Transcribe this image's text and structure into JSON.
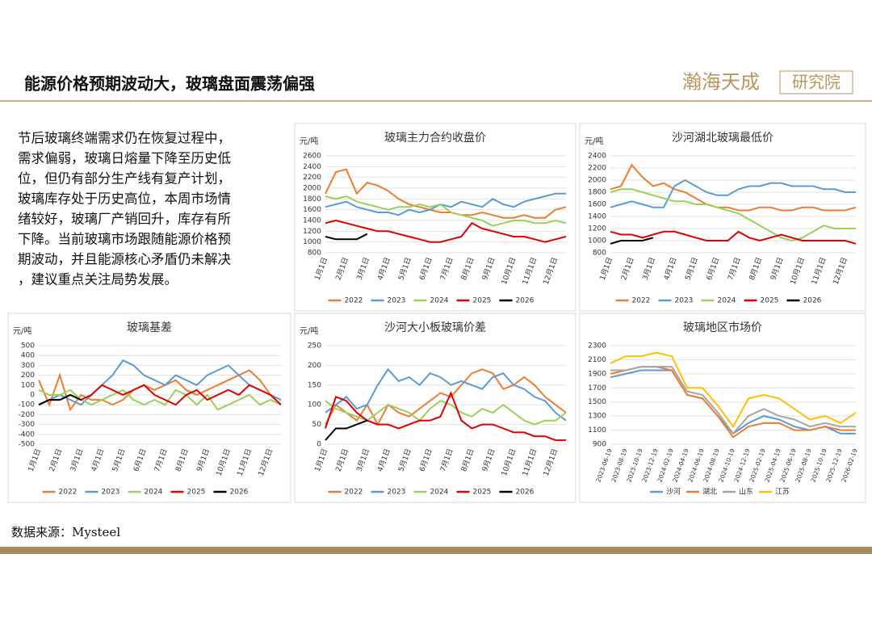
{
  "header": {
    "title": "能源价格预期波动大，玻璃盘面震荡偏强",
    "logo": "瀚海天成",
    "logo_box": "研究院"
  },
  "text": [
    "节后玻璃终端需求仍在恢复过程中，",
    "需求偏弱，玻璃日熔量下降至历史低",
    "位，但仍有部分生产线有复产计划，",
    "玻璃库存处于历史高位，本周市场情",
    "绪较好，玻璃厂产销回升，库存有所",
    "下降。当前玻璃市场跟随能源价格预",
    "期波动，并且能源核心矛盾仍未解决",
    "，建议重点关注局势发展。"
  ],
  "source": "数据来源：Mysteel",
  "chart_data": [
    {
      "type": "line",
      "title": "玻璃主力合约收盘价",
      "y_label": "元/吨",
      "grid": true,
      "categories": [
        "1月1日",
        null,
        "2月1日",
        null,
        "3月1日",
        null,
        "4月1日",
        null,
        "5月1日",
        null,
        "6月1日",
        null,
        "7月1日",
        null,
        "8月1日",
        null,
        "9月1日",
        null,
        "10月1日",
        null,
        "11月1日",
        null,
        "12月1日",
        null
      ],
      "ylim": [
        800,
        2600
      ],
      "yticks": [
        800,
        1000,
        1200,
        1400,
        1600,
        1800,
        2000,
        2200,
        2400,
        2600
      ],
      "series": [
        {
          "name": "2022",
          "color": "#ED7D31",
          "values": [
            1900,
            2300,
            2350,
            1900,
            2100,
            2050,
            1950,
            1800,
            1700,
            1650,
            1600,
            1550,
            1550,
            1500,
            1500,
            1550,
            1500,
            1450,
            1450,
            1500,
            1450,
            1450,
            1600,
            1650
          ]
        },
        {
          "name": "2023",
          "color": "#5B9BD5",
          "values": [
            1650,
            1700,
            1750,
            1650,
            1600,
            1550,
            1550,
            1500,
            1600,
            1550,
            1600,
            1700,
            1650,
            1750,
            1700,
            1650,
            1800,
            1700,
            1650,
            1750,
            1800,
            1850,
            1900,
            1900
          ]
        },
        {
          "name": "2024",
          "color": "#9BD05B",
          "values": [
            1850,
            1800,
            1850,
            1750,
            1700,
            1650,
            1600,
            1650,
            1650,
            1700,
            1650,
            1700,
            1550,
            1500,
            1450,
            1400,
            1300,
            1350,
            1400,
            1400,
            1350,
            1350,
            1400,
            1350
          ]
        },
        {
          "name": "2025",
          "color": "#E00000",
          "values": [
            1350,
            1400,
            1350,
            1300,
            1250,
            1200,
            1200,
            1150,
            1100,
            1050,
            1000,
            1000,
            1050,
            1100,
            1350,
            1250,
            1200,
            1150,
            1100,
            1100,
            1050,
            1000,
            1050,
            1100
          ]
        },
        {
          "name": "2026",
          "color": "#000000",
          "values": [
            1100,
            1050,
            1050,
            1050,
            1150,
            null,
            null,
            null,
            null,
            null,
            null,
            null,
            null,
            null,
            null,
            null,
            null,
            null,
            null,
            null,
            null,
            null,
            null,
            null
          ]
        }
      ]
    },
    {
      "type": "line",
      "title": "沙河湖北玻璃最低价",
      "y_label": "元/吨",
      "grid": true,
      "categories": [
        "1月1日",
        null,
        "2月1日",
        null,
        "3月1日",
        null,
        "4月1日",
        null,
        "5月1日",
        null,
        "6月1日",
        null,
        "7月1日",
        null,
        "8月1日",
        null,
        "9月1日",
        null,
        "10月1日",
        null,
        "11月1日",
        null,
        "12月1日",
        null
      ],
      "ylim": [
        800,
        2400
      ],
      "yticks": [
        800,
        1000,
        1200,
        1400,
        1600,
        1800,
        2000,
        2200,
        2400
      ],
      "series": [
        {
          "name": "2022",
          "color": "#ED7D31",
          "values": [
            1850,
            1900,
            2250,
            2050,
            1900,
            1950,
            1850,
            1800,
            1700,
            1600,
            1550,
            1550,
            1500,
            1500,
            1550,
            1550,
            1500,
            1500,
            1550,
            1550,
            1500,
            1500,
            1500,
            1550
          ]
        },
        {
          "name": "2023",
          "color": "#5B9BD5",
          "values": [
            1550,
            1600,
            1650,
            1600,
            1550,
            1550,
            1900,
            2000,
            1900,
            1800,
            1750,
            1750,
            1850,
            1900,
            1900,
            1950,
            1950,
            1900,
            1900,
            1900,
            1850,
            1850,
            1800,
            1800
          ]
        },
        {
          "name": "2024",
          "color": "#9BD05B",
          "values": [
            1800,
            1850,
            1850,
            1800,
            1750,
            1700,
            1650,
            1650,
            1600,
            1600,
            1550,
            1500,
            1450,
            1350,
            1250,
            1150,
            1050,
            1000,
            1050,
            1150,
            1250,
            1200,
            1200,
            1200
          ]
        },
        {
          "name": "2025",
          "color": "#E00000",
          "values": [
            1150,
            1100,
            1100,
            1050,
            1100,
            1150,
            1150,
            1100,
            1050,
            1000,
            1000,
            1000,
            1150,
            1050,
            1000,
            1050,
            1100,
            1050,
            1000,
            1000,
            1000,
            1000,
            1000,
            950
          ]
        },
        {
          "name": "2026",
          "color": "#000000",
          "values": [
            950,
            1000,
            1000,
            1000,
            1050,
            null,
            null,
            null,
            null,
            null,
            null,
            null,
            null,
            null,
            null,
            null,
            null,
            null,
            null,
            null,
            null,
            null,
            null,
            null
          ]
        }
      ]
    },
    {
      "type": "line",
      "title": "玻璃基差",
      "y_label": "元/吨",
      "grid": true,
      "categories": [
        "1月1日",
        null,
        "2月1日",
        null,
        "3月1日",
        null,
        "4月1日",
        null,
        "5月1日",
        null,
        "6月1日",
        null,
        "7月1日",
        null,
        "8月1日",
        null,
        "9月1日",
        null,
        "10月1日",
        null,
        "11月1日",
        null,
        "12月1日",
        null
      ],
      "ylim": [
        -500,
        500
      ],
      "yticks": [
        -500,
        -400,
        -300,
        -200,
        -100,
        0,
        100,
        200,
        300,
        400,
        500
      ],
      "series": [
        {
          "name": "2022",
          "color": "#ED7D31",
          "values": [
            150,
            -100,
            200,
            -150,
            0,
            -50,
            -50,
            -100,
            -50,
            50,
            100,
            50,
            100,
            150,
            50,
            0,
            50,
            100,
            150,
            200,
            250,
            150,
            0,
            -50
          ]
        },
        {
          "name": "2023",
          "color": "#5B9BD5",
          "values": [
            -100,
            -50,
            0,
            -50,
            -100,
            0,
            100,
            200,
            350,
            300,
            200,
            150,
            100,
            200,
            150,
            100,
            200,
            250,
            300,
            200,
            100,
            50,
            0,
            -50
          ]
        },
        {
          "name": "2024",
          "color": "#9BD05B",
          "values": [
            50,
            0,
            0,
            50,
            -50,
            -100,
            -50,
            0,
            50,
            -50,
            -100,
            -50,
            -100,
            50,
            0,
            -100,
            0,
            -150,
            -100,
            -50,
            0,
            -100,
            -50,
            -100
          ]
        },
        {
          "name": "2025",
          "color": "#E00000",
          "values": [
            -100,
            -50,
            -50,
            0,
            -50,
            0,
            100,
            50,
            0,
            50,
            100,
            0,
            -50,
            -100,
            0,
            50,
            -50,
            0,
            50,
            0,
            100,
            50,
            0,
            -100
          ]
        },
        {
          "name": "2026",
          "color": "#000000",
          "values": [
            -100,
            -50,
            -50,
            0,
            -50,
            null,
            null,
            null,
            null,
            null,
            null,
            null,
            null,
            null,
            null,
            null,
            null,
            null,
            null,
            null,
            null,
            null,
            null,
            null
          ]
        }
      ]
    },
    {
      "type": "line",
      "title": "沙河大小板玻璃价差",
      "y_label": "元/吨",
      "grid": true,
      "categories": [
        "1月1日",
        null,
        "2月1日",
        null,
        "3月1日",
        null,
        "4月1日",
        null,
        "5月1日",
        null,
        "6月1日",
        null,
        "7月1日",
        null,
        "8月1日",
        null,
        "9月1日",
        null,
        "10月1日",
        null,
        "11月1日",
        null,
        "12月1日",
        null
      ],
      "ylim": [
        0,
        250
      ],
      "yticks": [
        0,
        50,
        100,
        150,
        200,
        250
      ],
      "series": [
        {
          "name": "2022",
          "color": "#ED7D31",
          "values": [
            50,
            100,
            80,
            60,
            100,
            50,
            100,
            80,
            70,
            90,
            110,
            130,
            120,
            150,
            180,
            190,
            180,
            140,
            150,
            170,
            150,
            120,
            100,
            80
          ]
        },
        {
          "name": "2023",
          "color": "#5B9BD5",
          "values": [
            80,
            100,
            120,
            90,
            100,
            150,
            190,
            160,
            170,
            150,
            180,
            170,
            150,
            160,
            150,
            140,
            170,
            180,
            150,
            140,
            120,
            110,
            80,
            60
          ]
        },
        {
          "name": "2024",
          "color": "#9BD05B",
          "values": [
            110,
            90,
            80,
            70,
            60,
            80,
            100,
            90,
            80,
            60,
            90,
            110,
            100,
            80,
            70,
            90,
            80,
            100,
            80,
            60,
            50,
            60,
            60,
            80
          ]
        },
        {
          "name": "2025",
          "color": "#E00000",
          "values": [
            40,
            120,
            110,
            80,
            60,
            50,
            50,
            40,
            50,
            60,
            60,
            70,
            130,
            60,
            40,
            50,
            50,
            40,
            30,
            30,
            20,
            20,
            10,
            10
          ]
        },
        {
          "name": "2026",
          "color": "#000000",
          "values": [
            10,
            40,
            40,
            50,
            60,
            null,
            null,
            null,
            null,
            null,
            null,
            null,
            null,
            null,
            null,
            null,
            null,
            null,
            null,
            null,
            null,
            null,
            null,
            null
          ]
        }
      ]
    },
    {
      "type": "line",
      "title": "玻璃地区市场价",
      "grid": true,
      "categories": [
        "2023-06-19",
        "2023-08-19",
        "2023-10-19",
        "2023-12-19",
        "2024-02-19",
        "2024-04-19",
        "2024-06-19",
        "2024-08-19",
        "2024-10-19",
        "2024-12-19",
        "2025-02-19",
        "2025-04-19",
        "2025-06-19",
        "2025-08-19",
        "2025-10-19",
        "2025-12-19",
        "2026-02-19"
      ],
      "ylim": [
        900,
        2300
      ],
      "yticks": [
        900,
        1100,
        1300,
        1500,
        1700,
        1900,
        2100,
        2300
      ],
      "series": [
        {
          "name": "沙河",
          "color": "#5B9BD5",
          "values": [
            1850,
            1900,
            1950,
            1950,
            1950,
            1600,
            1550,
            1300,
            1050,
            1200,
            1300,
            1250,
            1150,
            1100,
            1150,
            1050,
            1050
          ]
        },
        {
          "name": "湖北",
          "color": "#ED7D31",
          "values": [
            1900,
            1950,
            2000,
            2000,
            1950,
            1600,
            1550,
            1300,
            1000,
            1150,
            1200,
            1200,
            1100,
            1100,
            1150,
            1100,
            1100
          ]
        },
        {
          "name": "山东",
          "color": "#A5A5A5",
          "values": [
            1950,
            1950,
            2000,
            2000,
            2000,
            1650,
            1600,
            1350,
            1050,
            1300,
            1400,
            1300,
            1250,
            1150,
            1200,
            1150,
            1150
          ]
        },
        {
          "name": "江苏",
          "color": "#FFC000",
          "values": [
            2050,
            2150,
            2150,
            2200,
            2150,
            1700,
            1700,
            1450,
            1150,
            1550,
            1600,
            1550,
            1400,
            1250,
            1300,
            1200,
            1350
          ]
        }
      ]
    }
  ]
}
